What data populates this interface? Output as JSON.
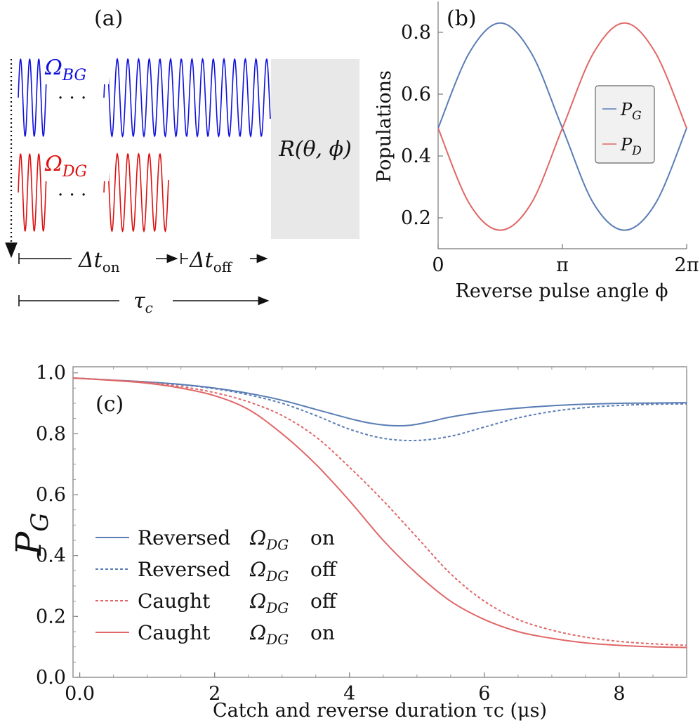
{
  "panel_a": {
    "panel_label": "(a)",
    "omega_bg_label": "Ω",
    "omega_bg_sub": "BG",
    "omega_dg_label": "Ω",
    "omega_dg_sub": "DG",
    "dots": "· · ·",
    "rotation_label": "R(θ, ϕ)",
    "dt_on_main": "Δt",
    "dt_on_sub": "on",
    "dt_off_main": "Δt",
    "dt_off_sub": "off",
    "tau_main": "τ",
    "tau_sub": "c",
    "colors": {
      "bg": "#1010dd",
      "dg": "#dd1010",
      "box": "#e8e8e8"
    }
  },
  "chart_data": [
    {
      "type": "line",
      "panel": "(b)",
      "xlabel": "Reverse pulse angle ϕ",
      "ylabel": "Populations",
      "xlim": [
        0,
        6.283
      ],
      "ylim": [
        0.1,
        0.9
      ],
      "xticks": [
        {
          "value": 0,
          "label": "0"
        },
        {
          "value": 3.1416,
          "label": "π"
        },
        {
          "value": 6.2832,
          "label": "2π"
        }
      ],
      "yticks": [
        {
          "value": 0.2,
          "label": "0.2"
        },
        {
          "value": 0.4,
          "label": "0.4"
        },
        {
          "value": 0.6,
          "label": "0.6"
        },
        {
          "value": 0.8,
          "label": "0.8"
        }
      ],
      "legend_position": "right",
      "series": [
        {
          "name": "P",
          "sub": "G",
          "color": "#5a7db5",
          "x": [
            0,
            0.785,
            1.571,
            2.356,
            3.142,
            3.927,
            4.712,
            5.498,
            6.283
          ],
          "values": [
            0.49,
            0.733,
            0.83,
            0.733,
            0.49,
            0.247,
            0.16,
            0.247,
            0.49
          ]
        },
        {
          "name": "P",
          "sub": "D",
          "color": "#e06767",
          "x": [
            0,
            0.785,
            1.571,
            2.356,
            3.142,
            3.927,
            4.712,
            5.498,
            6.283
          ],
          "values": [
            0.49,
            0.247,
            0.16,
            0.247,
            0.49,
            0.733,
            0.83,
            0.733,
            0.49
          ]
        }
      ]
    },
    {
      "type": "line",
      "panel": "(c)",
      "xlabel": "Catch and reverse duration τc (μs)",
      "ylabel": "P",
      "ylabel_sub": "G",
      "xlim": [
        -0.1,
        9
      ],
      "ylim": [
        0.0,
        1.02
      ],
      "xticks": [
        {
          "value": 0,
          "label": "0.0"
        },
        {
          "value": 2,
          "label": "2"
        },
        {
          "value": 4,
          "label": "4"
        },
        {
          "value": 6,
          "label": "6"
        },
        {
          "value": 8,
          "label": "8"
        }
      ],
      "yticks": [
        {
          "value": 0.0,
          "label": "0.0"
        },
        {
          "value": 0.2,
          "label": "0.2"
        },
        {
          "value": 0.4,
          "label": "0.4"
        },
        {
          "value": 0.6,
          "label": "0.6"
        },
        {
          "value": 0.8,
          "label": "0.8"
        },
        {
          "value": 1.0,
          "label": "1.0"
        }
      ],
      "legend_position": "lower-left",
      "series": [
        {
          "name": "Reversed ΩDG on",
          "legend_main": "Reversed",
          "legend_sub": "DG",
          "legend_tail": "on",
          "color": "#5a7db5",
          "dash": false,
          "x": [
            -0.1,
            0.5,
            1,
            1.5,
            2,
            2.5,
            3,
            3.5,
            4,
            4.3,
            4.6,
            4.9,
            5.2,
            5.5,
            6,
            6.5,
            7,
            7.5,
            8,
            8.5,
            9
          ],
          "values": [
            0.983,
            0.976,
            0.97,
            0.962,
            0.95,
            0.933,
            0.91,
            0.88,
            0.85,
            0.835,
            0.827,
            0.828,
            0.84,
            0.855,
            0.872,
            0.884,
            0.892,
            0.897,
            0.9,
            0.901,
            0.902
          ]
        },
        {
          "name": "Reversed ΩDG off",
          "legend_main": "Reversed",
          "legend_sub": "DG",
          "legend_tail": "off",
          "color": "#5a7db5",
          "dash": true,
          "x": [
            -0.1,
            0.5,
            1,
            1.5,
            2,
            2.5,
            3,
            3.5,
            4,
            4.5,
            5,
            5.5,
            6,
            6.5,
            7,
            7.5,
            8,
            8.5,
            9
          ],
          "values": [
            0.983,
            0.976,
            0.97,
            0.961,
            0.948,
            0.928,
            0.9,
            0.86,
            0.815,
            0.785,
            0.778,
            0.792,
            0.822,
            0.852,
            0.873,
            0.886,
            0.893,
            0.897,
            0.898
          ]
        },
        {
          "name": "Caught ΩDG off",
          "legend_main": "Caught",
          "legend_sub": "DG",
          "legend_tail": "off",
          "color": "#e06767",
          "dash": true,
          "x": [
            -0.1,
            0.5,
            1,
            1.5,
            2,
            2.5,
            3,
            3.5,
            4,
            4.5,
            5,
            5.5,
            6,
            6.5,
            7,
            7.5,
            8,
            8.5,
            9
          ],
          "values": [
            0.983,
            0.976,
            0.969,
            0.955,
            0.935,
            0.905,
            0.86,
            0.79,
            0.69,
            0.58,
            0.46,
            0.34,
            0.25,
            0.19,
            0.155,
            0.132,
            0.118,
            0.11,
            0.105
          ]
        },
        {
          "name": "Caught ΩDG on",
          "legend_main": "Caught",
          "legend_sub": "DG",
          "legend_tail": "on",
          "color": "#e06767",
          "dash": false,
          "x": [
            -0.1,
            0.5,
            1,
            1.5,
            2,
            2.5,
            3,
            3.5,
            4,
            4.5,
            5,
            5.5,
            6,
            6.5,
            7,
            7.5,
            8,
            8.5,
            9
          ],
          "values": [
            0.983,
            0.975,
            0.966,
            0.95,
            0.925,
            0.88,
            0.8,
            0.7,
            0.58,
            0.45,
            0.34,
            0.25,
            0.19,
            0.15,
            0.128,
            0.113,
            0.105,
            0.1,
            0.098
          ]
        }
      ]
    }
  ]
}
